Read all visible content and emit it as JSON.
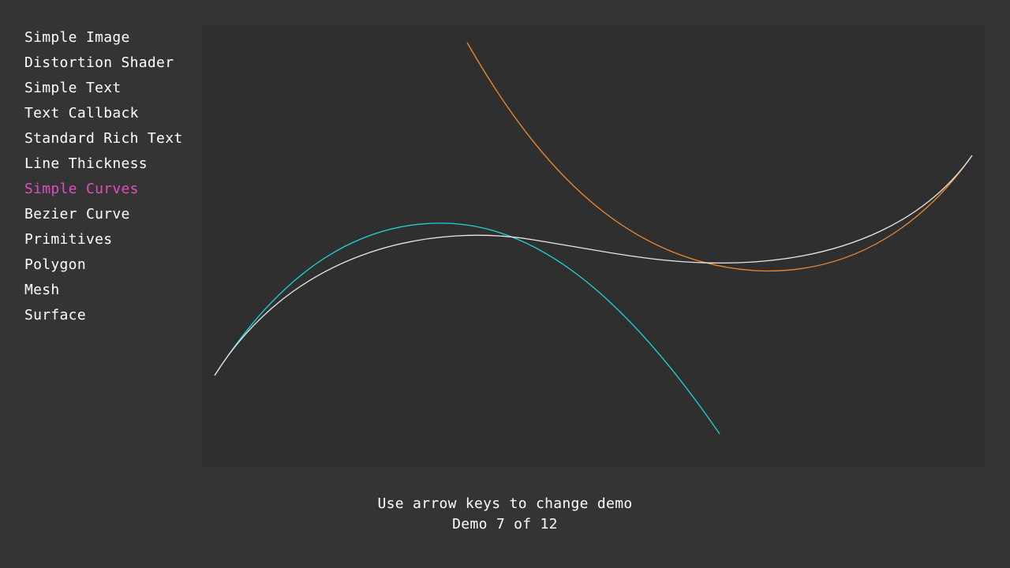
{
  "menu": {
    "items": [
      {
        "label": "Simple Image",
        "active": false
      },
      {
        "label": "Distortion Shader",
        "active": false
      },
      {
        "label": "Simple Text",
        "active": false
      },
      {
        "label": "Text Callback",
        "active": false
      },
      {
        "label": "Standard Rich Text",
        "active": false
      },
      {
        "label": "Line Thickness",
        "active": false
      },
      {
        "label": "Simple Curves",
        "active": true
      },
      {
        "label": "Bezier Curve",
        "active": false
      },
      {
        "label": "Primitives",
        "active": false
      },
      {
        "label": "Polygon",
        "active": false
      },
      {
        "label": "Mesh",
        "active": false
      },
      {
        "label": "Surface",
        "active": false
      }
    ]
  },
  "colors": {
    "background": "#343434",
    "canvas": "#2f2f2f",
    "text": "#ffffff",
    "active_item": "#e04fbc",
    "curve_cyan": "#1fd6d6",
    "curve_orange": "#f08a2c",
    "curve_white": "#e8e8e8"
  },
  "footer": {
    "hint": "Use arrow keys to change demo",
    "status": "Demo 7 of 12"
  }
}
